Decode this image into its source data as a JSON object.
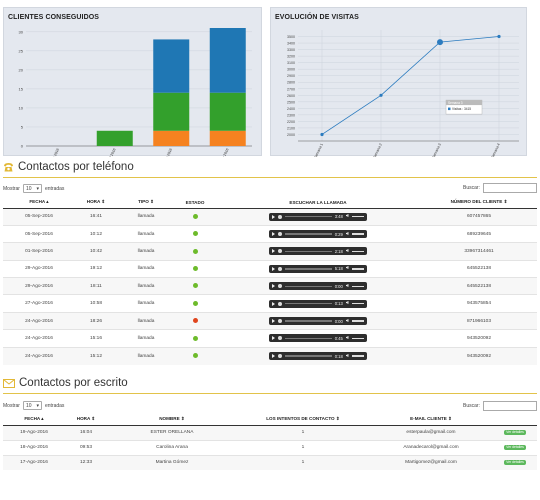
{
  "clientes_panel": {
    "title": "CLIENTES CONSEGUIDOS"
  },
  "visitas_panel": {
    "title": "EVOLUCIÓN DE VISITAS"
  },
  "chart_data": [
    {
      "type": "bar",
      "stacked": true,
      "title": "CLIENTES CONSEGUIDOS",
      "categories": [
        "Jun 2016",
        "Jul 2016",
        "Ago 2016",
        "Sep 2016"
      ],
      "series": [
        {
          "values": [
            0,
            0,
            4,
            4
          ],
          "color": "#f58220"
        },
        {
          "values": [
            0,
            4,
            10,
            10
          ],
          "color": "#33a02c"
        },
        {
          "values": [
            0,
            0,
            14,
            17
          ],
          "color": "#1f77b4"
        }
      ],
      "ylim": [
        0,
        31
      ],
      "yticks": [
        0,
        5,
        10,
        15,
        20,
        25,
        30
      ],
      "grid": true
    },
    {
      "type": "line",
      "title": "EVOLUCIÓN DE VISITAS",
      "categories": [
        "Semana 1",
        "Semana 2",
        "Semana 3",
        "Semana 4"
      ],
      "series": [
        {
          "name": "Visitas",
          "values": [
            2000,
            2600,
            3415,
            3500
          ],
          "color": "#2b7bbf"
        }
      ],
      "ylim": [
        1900,
        3600
      ],
      "yticks": [
        2000,
        2100,
        2200,
        2300,
        2400,
        2500,
        2600,
        2700,
        2800,
        2900,
        3000,
        3100,
        3200,
        3300,
        3400,
        3500
      ],
      "tooltip": {
        "header": "Semana 3",
        "text": "Visitas : 3415"
      },
      "grid": true
    }
  ],
  "telefono": {
    "title": "Contactos por teléfono",
    "show_label": "Mostrar",
    "entries_value": "10",
    "entries_label": "entradas",
    "search_label": "Buscar:",
    "columns": [
      "FECHA",
      "HORA",
      "TIPO",
      "ESTADO",
      "ESCUCHAR LA LLAMADA",
      "NÚMERO DEL CLIENTE"
    ],
    "rows": [
      {
        "fecha": "05-Sep-2016",
        "hora": "16:41",
        "tipo": "llamada",
        "estado": "ok",
        "duracion": "3:48",
        "numero": "607457865"
      },
      {
        "fecha": "05-Sep-2016",
        "hora": "10:12",
        "tipo": "llamada",
        "estado": "ok",
        "duracion": "0:29",
        "numero": "689239645"
      },
      {
        "fecha": "01-Sep-2016",
        "hora": "10:42",
        "tipo": "llamada",
        "estado": "ok",
        "duracion": "2:18",
        "numero": "33967314461"
      },
      {
        "fecha": "29-Ago-2016",
        "hora": "19:12",
        "tipo": "llamada",
        "estado": "ok",
        "duracion": "5:18",
        "numero": "645522138"
      },
      {
        "fecha": "29-Ago-2016",
        "hora": "18:11",
        "tipo": "llamada",
        "estado": "ok",
        "duracion": "0:00",
        "numero": "645522138"
      },
      {
        "fecha": "27-Ago-2016",
        "hora": "10:58",
        "tipo": "llamada",
        "estado": "ok",
        "duracion": "0:13",
        "numero": "943575854"
      },
      {
        "fecha": "24-Ago-2016",
        "hora": "18:26",
        "tipo": "llamada",
        "estado": "bad",
        "duracion": "0:00",
        "numero": "871966103"
      },
      {
        "fecha": "24-Ago-2016",
        "hora": "15:16",
        "tipo": "llamada",
        "estado": "ok",
        "duracion": "0:45",
        "numero": "943520092"
      },
      {
        "fecha": "24-Ago-2016",
        "hora": "15:12",
        "tipo": "llamada",
        "estado": "ok",
        "duracion": "0:18",
        "numero": "943520092"
      }
    ]
  },
  "escrito": {
    "title": "Contactos por escrito",
    "show_label": "Mostrar",
    "entries_value": "10",
    "entries_label": "entradas",
    "search_label": "Buscar:",
    "columns": [
      "FECHA",
      "HORA",
      "NOMBRE",
      "LOS INTENTOS DE CONTACTO",
      "E-MAIL CLIENTE",
      ""
    ],
    "rows": [
      {
        "fecha": "19-Ago-2016",
        "hora": "16:04",
        "nombre": "ESTER ORELLANA",
        "intentos": "1",
        "email": "esterpaula@gmail.com",
        "accion": "Ver detalles"
      },
      {
        "fecha": "18-Ago-2016",
        "hora": "09:53",
        "nombre": "Carolina Arana",
        "intentos": "1",
        "email": "Aranadecarol@gmail.com",
        "accion": "Ver detalles"
      },
      {
        "fecha": "17-Ago-2016",
        "hora": "12:33",
        "nombre": "Martina Gómez",
        "intentos": "1",
        "email": "Martigomez@gmail.com",
        "accion": "Ver detalles"
      }
    ]
  }
}
